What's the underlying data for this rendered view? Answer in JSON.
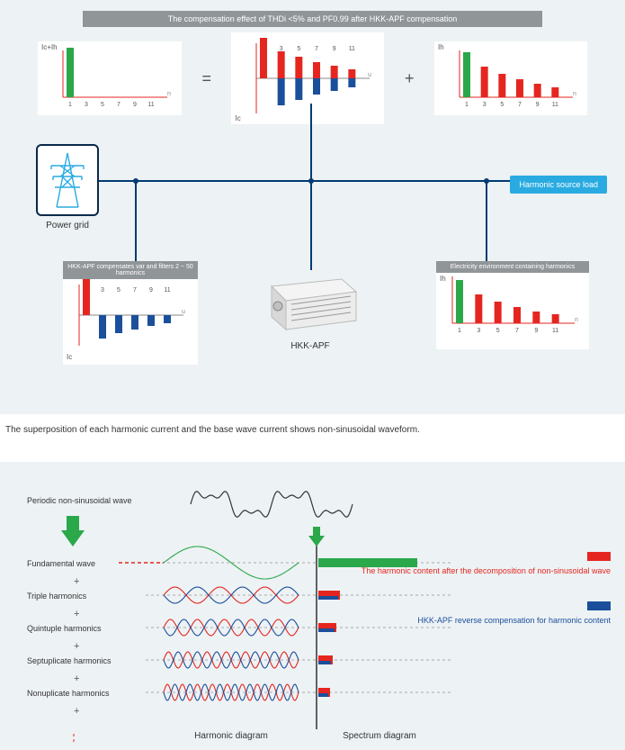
{
  "panel1": {
    "header": "The compensation effect of THDi <5% and PF0.99 after HKK-APF compensation",
    "chart_combined": {
      "ylab": "Ic+Ih",
      "ticks": [
        "1",
        "3",
        "5",
        "7",
        "9",
        "11"
      ],
      "bars": [
        {
          "x": 1,
          "h": 55,
          "c": "#2aa84a"
        }
      ],
      "bg": "#ffffff",
      "axis": "#e52620",
      "w": 140,
      "H": 70
    },
    "equals": "=",
    "chart_mid": {
      "ylab": "Ic",
      "ticks": [
        "1",
        "3",
        "5",
        "7",
        "9",
        "11"
      ],
      "red": [
        {
          "x": 1,
          "h": 45
        },
        {
          "x": 3,
          "h": 30
        },
        {
          "x": 5,
          "h": 24
        },
        {
          "x": 7,
          "h": 18
        },
        {
          "x": 9,
          "h": 14
        },
        {
          "x": 11,
          "h": 10
        }
      ],
      "blue": [
        {
          "x": 3,
          "h": 30
        },
        {
          "x": 5,
          "h": 24
        },
        {
          "x": 7,
          "h": 18
        },
        {
          "x": 9,
          "h": 14
        },
        {
          "x": 11,
          "h": 10
        }
      ],
      "bg": "#ffffff",
      "axisX": "#888",
      "axisY": "#e52620",
      "W": 150,
      "H": 90
    },
    "plus": "+",
    "chart_right": {
      "ylab": "Ih",
      "ticks": [
        "1",
        "3",
        "5",
        "7",
        "9",
        "11"
      ],
      "bars": [
        {
          "x": 1,
          "h": 50,
          "c": "#2aa84a"
        },
        {
          "x": 3,
          "h": 34,
          "c": "#e52620"
        },
        {
          "x": 5,
          "h": 26,
          "c": "#e52620"
        },
        {
          "x": 7,
          "h": 20,
          "c": "#e52620"
        },
        {
          "x": 9,
          "h": 15,
          "c": "#e52620"
        },
        {
          "x": 11,
          "h": 11,
          "c": "#e52620"
        }
      ],
      "bg": "#ffffff",
      "axis": "#e52620",
      "W": 150,
      "H": 70
    },
    "grid_label": "Power grid",
    "harmonic_load": "Harmonic source load",
    "sub_left_title": "HKK-APF compensates var and filters 2 ~ 50 harmonics",
    "sub_left_chart": {
      "ticks": [
        "1",
        "3",
        "5",
        "7",
        "9",
        "11"
      ],
      "red": [
        {
          "x": 1,
          "h": 40
        }
      ],
      "blue": [
        {
          "x": 3,
          "h": 26
        },
        {
          "x": 5,
          "h": 20
        },
        {
          "x": 7,
          "h": 16
        },
        {
          "x": 9,
          "h": 12
        },
        {
          "x": 11,
          "h": 9
        }
      ],
      "ylab": "Ic",
      "W": 140,
      "H": 80
    },
    "sub_right_title": "Electricity environment containing harmonics",
    "sub_right_chart": {
      "ylab": "Ih",
      "ticks": [
        "1",
        "3",
        "5",
        "7",
        "9",
        "11"
      ],
      "bars": [
        {
          "x": 1,
          "h": 48,
          "c": "#2aa84a"
        },
        {
          "x": 3,
          "h": 32,
          "c": "#e52620"
        },
        {
          "x": 5,
          "h": 24,
          "c": "#e52620"
        },
        {
          "x": 7,
          "h": 18,
          "c": "#e52620"
        },
        {
          "x": 9,
          "h": 13,
          "c": "#e52620"
        },
        {
          "x": 11,
          "h": 10,
          "c": "#e52620"
        }
      ],
      "W": 160,
      "H": 70
    },
    "device_label": "HKK-APF",
    "wire_color": "#003b73"
  },
  "caption": "The superposition of each harmonic current and the base wave current shows non-sinusoidal waveform.",
  "panel2": {
    "rows": [
      {
        "label": "Periodic non-sinusoidal wave"
      },
      {
        "label": "Fundamental wave",
        "spec_r": 110,
        "wave": "sine1",
        "color": "#2aa84a",
        "spec_c": "#2aa84a"
      },
      {
        "label": "Triple harmonics",
        "spec_r": 24,
        "wave": "h3"
      },
      {
        "label": "Quintuple harmonics",
        "spec_r": 20,
        "wave": "h5"
      },
      {
        "label": "Septuplicate harmonics",
        "spec_r": 16,
        "wave": "h7"
      },
      {
        "label": "Nonuplicate harmonics",
        "spec_r": 13,
        "wave": "h9"
      }
    ],
    "plus": "+",
    "axis_harmonic": "Harmonic diagram",
    "axis_spectrum": "Spectrum diagram",
    "legend_red": "The harmonic content after the decomposition of non-sinusoidal wave",
    "legend_blue": "HKK-APF reverse compensation for harmonic content",
    "colors": {
      "red": "#e52620",
      "blue": "#1b4f9c",
      "green": "#2aa84a",
      "axis": "#333",
      "dash": "#aaa"
    }
  }
}
